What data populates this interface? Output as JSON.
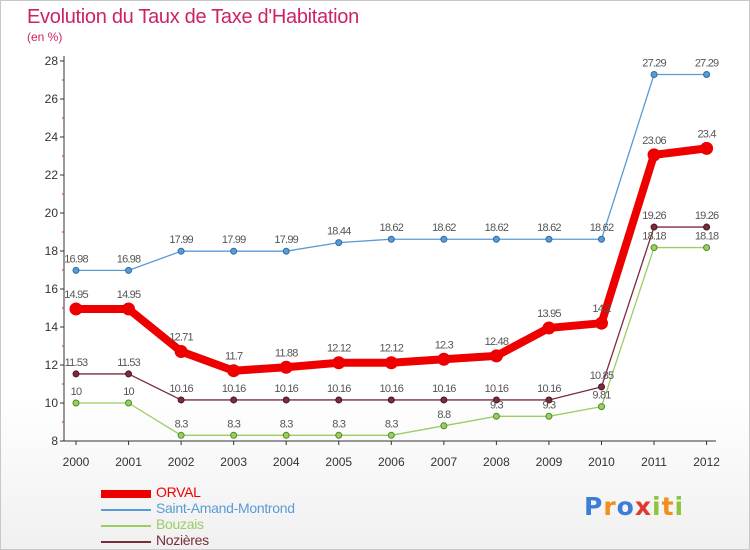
{
  "chart_data": {
    "type": "line",
    "title": "Evolution du Taux de Taxe d'Habitation",
    "ylabel": "(en %)",
    "xlabel": "",
    "ylim": [
      8,
      28
    ],
    "yticks": [
      8,
      10,
      12,
      14,
      16,
      18,
      20,
      22,
      24,
      26,
      28
    ],
    "grid": false,
    "legend_position": "bottom-left",
    "categories": [
      "2000",
      "2001",
      "2002",
      "2003",
      "2004",
      "2005",
      "2006",
      "2007",
      "2008",
      "2009",
      "2010",
      "2011",
      "2012"
    ],
    "series": [
      {
        "name": "ORVAL",
        "color": "#ee0000",
        "values": [
          14.95,
          14.95,
          12.71,
          11.7,
          11.88,
          12.12,
          12.12,
          12.3,
          12.48,
          13.95,
          14.2,
          23.06,
          23.4
        ],
        "labels": [
          "14.95",
          "14.95",
          "12.71",
          "11.7",
          "11.88",
          "12.12",
          "12.12",
          "12.3",
          "12.48",
          "13.95",
          "14.2",
          "23.06",
          "23.4"
        ]
      },
      {
        "name": "Saint-Amand-Montrond",
        "color": "#5b9bd5",
        "values": [
          16.98,
          16.98,
          17.99,
          17.99,
          17.99,
          18.44,
          18.62,
          18.62,
          18.62,
          18.62,
          18.62,
          27.29,
          27.29
        ],
        "labels": [
          "16.98",
          "16.98",
          "17.99",
          "17.99",
          "17.99",
          "18.44",
          "18.62",
          "18.62",
          "18.62",
          "18.62",
          "18.62",
          "27.29",
          "27.29"
        ]
      },
      {
        "name": "Bouzais",
        "color": "#9ccc65",
        "values": [
          10,
          10,
          8.3,
          8.3,
          8.3,
          8.3,
          8.3,
          8.8,
          9.3,
          9.3,
          9.81,
          18.18,
          18.18
        ],
        "labels": [
          "10",
          "10",
          "8.3",
          "8.3",
          "8.3",
          "8.3",
          "8.3",
          "8.8",
          "9.3",
          "9.3",
          "9.81",
          "18.18",
          "18.18"
        ]
      },
      {
        "name": "Nozières",
        "color": "#7b2c3a",
        "values": [
          11.53,
          11.53,
          10.16,
          10.16,
          10.16,
          10.16,
          10.16,
          10.16,
          10.16,
          10.16,
          10.85,
          19.26,
          19.26
        ],
        "labels": [
          "11.53",
          "11.53",
          "10.16",
          "10.16",
          "10.16",
          "10.16",
          "10.16",
          "10.16",
          "10.16",
          "10.16",
          "10.85",
          "19.26",
          "19.26"
        ]
      }
    ]
  },
  "brand": {
    "letters": [
      "P",
      "r",
      "o",
      "x",
      "i",
      "t",
      "i"
    ],
    "colors": [
      "#3a7fd5",
      "#f28e1c",
      "#3a7fd5",
      "#e03a2f",
      "#8cc63f",
      "#f28e1c",
      "#8cc63f"
    ]
  }
}
